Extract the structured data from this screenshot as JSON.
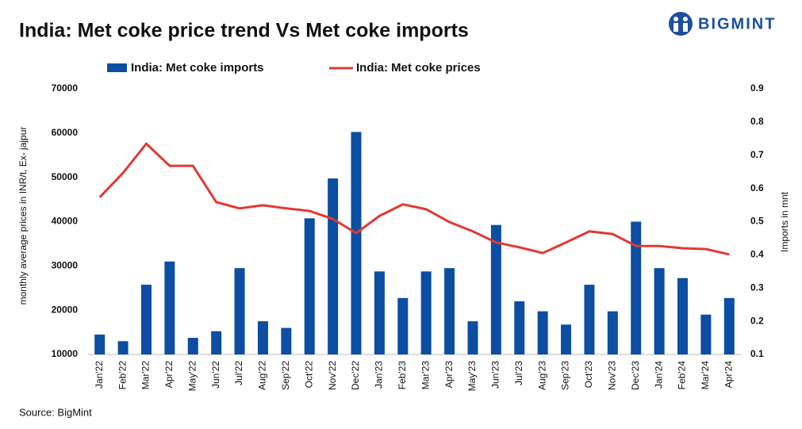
{
  "chart_data": {
    "type": "bar_line",
    "title": "India: Met coke price trend Vs Met coke imports",
    "brand": "BIGMINT",
    "source": "Source: BigMint",
    "y_label": "monthly average prices in INR/t, Ex- jajpur",
    "y2_label": "Imports in mnt",
    "categories": [
      "Jan'22",
      "Feb'22",
      "Mar'22",
      "Apr'22",
      "May'22",
      "Jun'22",
      "Jul'22",
      "Aug'22",
      "Sep'22",
      "Oct'22",
      "Nov'22",
      "Dec'22",
      "Jan'23",
      "Feb'23",
      "Mar'23",
      "Apr'23",
      "May'23",
      "Jun'23",
      "Jul'23",
      "Aug'23",
      "Sep'23",
      "Oct'23",
      "Nov'23",
      "Dec'23",
      "Jan'24",
      "Feb'24",
      "Mar'24",
      "Apr'24"
    ],
    "series": [
      {
        "name": "India: Met coke imports",
        "type": "bar",
        "axis": "y2",
        "color": "#0b4ea2",
        "values": [
          0.16,
          0.14,
          0.31,
          0.38,
          0.15,
          0.17,
          0.36,
          0.2,
          0.18,
          0.51,
          0.63,
          0.77,
          0.35,
          0.27,
          0.35,
          0.36,
          0.2,
          0.49,
          0.26,
          0.23,
          0.19,
          0.31,
          0.23,
          0.5,
          0.36,
          0.33,
          0.22,
          0.27
        ]
      },
      {
        "name": "India: Met coke prices",
        "type": "line",
        "color": "#e03a35",
        "values": [
          45500,
          51000,
          57600,
          52600,
          52600,
          44400,
          43000,
          43700,
          43000,
          42400,
          40600,
          37400,
          41300,
          43900,
          42800,
          39900,
          37800,
          35300,
          34200,
          32900,
          35300,
          37800,
          37200,
          34500,
          34500,
          34000,
          33800,
          32600
        ]
      }
    ],
    "ylim": [
      10000,
      70000
    ],
    "yticks": [
      10000,
      20000,
      30000,
      40000,
      50000,
      60000,
      70000
    ],
    "y2lim": [
      0.1,
      0.9
    ],
    "y2ticks": [
      0.1,
      0.2,
      0.3,
      0.4,
      0.5,
      0.6,
      0.7,
      0.8,
      0.9
    ],
    "grid": false,
    "legend": "top"
  }
}
